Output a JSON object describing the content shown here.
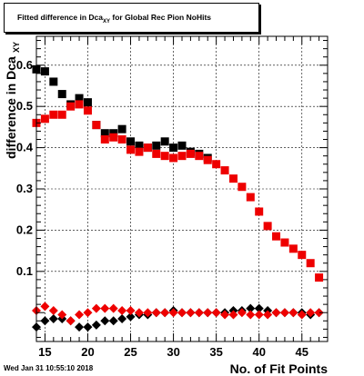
{
  "title": {
    "main": "Fitted difference in Dca",
    "subscript": "XY",
    "suffix": " for Global Rec Pion NoHits"
  },
  "timestamp": "Wed Jan 31 10:55:10 2018",
  "chart_data": {
    "type": "scatter",
    "xlabel": "No. of Fit Points",
    "ylabel": "difference in Dca",
    "ylabel_sub": "XY",
    "xlim": [
      14,
      48
    ],
    "ylim": [
      -0.07,
      0.67
    ],
    "x_ticks": [
      15,
      20,
      25,
      30,
      35,
      40,
      45
    ],
    "y_ticks": [
      0.1,
      0.2,
      0.3,
      0.4,
      0.5,
      0.6
    ],
    "grid": true,
    "colors": {
      "black": "#000000",
      "red": "#ee0000"
    },
    "series": [
      {
        "marker": "square",
        "color": "#000000",
        "x": [
          14,
          15,
          16,
          17,
          18,
          19,
          20,
          21,
          22,
          23,
          24,
          25,
          26,
          27,
          28,
          29,
          30,
          31,
          32,
          33,
          34
        ],
        "y": [
          0.59,
          0.585,
          0.56,
          0.53,
          0.505,
          0.52,
          0.51,
          0.455,
          0.435,
          0.435,
          0.445,
          0.415,
          0.405,
          0.4,
          0.405,
          0.415,
          0.4,
          0.405,
          0.39,
          0.385,
          0.375
        ]
      },
      {
        "marker": "square",
        "color": "#ee0000",
        "x": [
          14,
          15,
          16,
          17,
          18,
          19,
          20,
          21,
          22,
          23,
          24,
          25,
          26,
          27,
          28,
          29,
          30,
          31,
          32,
          33,
          34,
          35,
          36,
          37,
          38,
          39,
          40,
          41,
          42,
          43,
          44,
          45,
          46,
          47
        ],
        "y": [
          0.46,
          0.47,
          0.48,
          0.48,
          0.5,
          0.505,
          0.49,
          0.455,
          0.42,
          0.425,
          0.42,
          0.395,
          0.39,
          0.4,
          0.385,
          0.38,
          0.375,
          0.38,
          0.385,
          0.38,
          0.37,
          0.36,
          0.345,
          0.325,
          0.305,
          0.28,
          0.245,
          0.21,
          0.185,
          0.17,
          0.155,
          0.14,
          0.12,
          0.085
        ]
      },
      {
        "marker": "diamond",
        "color": "#000000",
        "x": [
          14,
          15,
          16,
          17,
          18,
          19,
          20,
          21,
          22,
          23,
          24,
          25,
          26,
          27,
          28,
          29,
          30,
          31,
          32,
          33,
          34,
          35,
          36,
          37,
          38,
          39,
          40,
          41,
          42,
          43,
          44,
          45,
          46,
          47
        ],
        "y": [
          -0.035,
          -0.02,
          -0.015,
          -0.015,
          -0.02,
          -0.035,
          -0.035,
          -0.03,
          -0.02,
          -0.02,
          -0.015,
          -0.01,
          -0.005,
          -0.005,
          0.0,
          0.0,
          0.005,
          0.0,
          0.0,
          0.0,
          0.0,
          0.0,
          0.0,
          0.005,
          0.005,
          0.01,
          0.01,
          0.005,
          0.0,
          0.0,
          0.0,
          0.0,
          -0.005,
          0.0
        ]
      },
      {
        "marker": "diamond",
        "color": "#ee0000",
        "x": [
          14,
          15,
          16,
          17,
          18,
          19,
          20,
          21,
          22,
          23,
          24,
          25,
          26,
          27,
          28,
          29,
          30,
          31,
          32,
          33,
          34,
          35,
          36,
          37,
          38,
          39,
          40,
          41,
          42,
          43,
          44,
          45,
          46,
          47
        ],
        "y": [
          0.005,
          0.015,
          0.005,
          -0.005,
          -0.02,
          -0.005,
          0.0,
          0.01,
          0.01,
          0.01,
          0.005,
          0.005,
          0.0,
          0.0,
          0.0,
          0.0,
          0.0,
          0.0,
          0.0,
          0.0,
          0.0,
          0.0,
          -0.005,
          -0.005,
          0.0,
          -0.005,
          -0.005,
          -0.005,
          0.0,
          0.0,
          0.0,
          -0.005,
          0.0,
          0.0
        ]
      }
    ]
  }
}
